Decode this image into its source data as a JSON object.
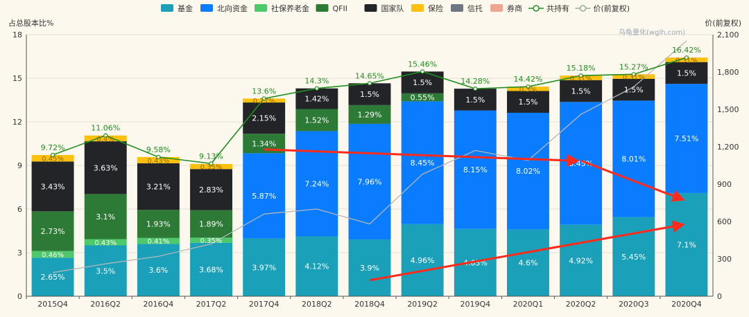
{
  "chart_data": {
    "type": "bar",
    "subtype": "stacked-bar-with-line",
    "title": "",
    "watermark": "乌龟量化(wglh.com)",
    "ylabel_left": "占总股本比%",
    "ylabel_right": "价(前复权)",
    "ylim_left": [
      0,
      18
    ],
    "yticks_left": [
      0,
      3,
      6,
      9,
      12,
      15,
      18
    ],
    "ylim_right": [
      0,
      2100
    ],
    "yticks_right": [
      0,
      300,
      600,
      900,
      1200,
      1500,
      1800,
      2100
    ],
    "grid": true,
    "legend_position": "top-center",
    "categories": [
      "2015Q4",
      "2016Q2",
      "2016Q4",
      "2017Q2",
      "2017Q4",
      "2018Q2",
      "2018Q4",
      "2019Q2",
      "2019Q4",
      "2020Q1",
      "2020Q2",
      "2020Q3",
      "2020Q4"
    ],
    "series": [
      {
        "name": "基金",
        "color": "#1aa0b8",
        "values": [
          2.65,
          3.5,
          3.6,
          3.68,
          3.97,
          4.12,
          3.9,
          4.96,
          4.63,
          4.6,
          4.92,
          5.45,
          7.1
        ],
        "labels": [
          "2.65%",
          "3.5%",
          "3.6%",
          "3.68%",
          "3.97%",
          "4.12%",
          "3.9%",
          "4.96%",
          "4.63%",
          "4.6%",
          "4.92%",
          "5.45%",
          "7.1%"
        ]
      },
      {
        "name": "社保养老金",
        "color": "#4dc86a",
        "values": [
          0.46,
          0.43,
          0.41,
          0.35,
          0,
          0,
          0,
          0,
          0,
          0,
          0,
          0,
          0
        ],
        "labels": [
          "0.46%",
          "0.43%",
          "0.41%",
          "0.35%",
          "",
          "",
          "",
          "",
          "",
          "",
          "",
          "",
          ""
        ]
      },
      {
        "name": "北向资金",
        "color": "#0a7cff",
        "values": [
          0,
          0,
          0,
          0,
          5.87,
          7.24,
          7.96,
          8.45,
          8.15,
          8.02,
          8.45,
          8.01,
          7.51
        ],
        "labels": [
          "",
          "",
          "",
          "",
          "5.87%",
          "7.24%",
          "7.96%",
          "8.45%",
          "8.15%",
          "8.02%",
          "8.45%",
          "8.01%",
          "7.51%"
        ]
      },
      {
        "name": "QFII",
        "color": "#2d7a36",
        "values": [
          2.73,
          3.1,
          1.93,
          1.89,
          1.34,
          1.52,
          1.29,
          0.55,
          0,
          0,
          0,
          0,
          0
        ],
        "labels": [
          "2.73%",
          "3.1%",
          "1.93%",
          "1.89%",
          "1.34%",
          "1.52%",
          "1.29%",
          "0.55%",
          "",
          "",
          "",
          "",
          ""
        ]
      },
      {
        "name": "国家队",
        "color": "#222428",
        "values": [
          3.43,
          3.63,
          3.21,
          2.83,
          2.15,
          1.42,
          1.5,
          1.5,
          1.5,
          1.5,
          1.5,
          1.5,
          1.5
        ],
        "labels": [
          "3.43%",
          "3.63%",
          "3.21%",
          "2.83%",
          "2.15%",
          "1.42%",
          "1.5%",
          "1.5%",
          "1.5%",
          "1.5%",
          "1.5%",
          "1.5%",
          "1.5%"
        ]
      },
      {
        "name": "保险",
        "color": "#fcc10e",
        "values": [
          0.45,
          0.4,
          0.43,
          0.35,
          0.27,
          0,
          0,
          0,
          0,
          0.3,
          0.31,
          0.31,
          0.31
        ],
        "labels": [
          "0.45%",
          "0.4%",
          "0.43%",
          "0.35%",
          "0.27%",
          "",
          "",
          "",
          "",
          "0.3%",
          "0.31%",
          "0.31%",
          "0.31%"
        ]
      }
    ],
    "total_line": {
      "name": "共持有",
      "color": "#1f8f1f",
      "values": [
        9.72,
        11.06,
        9.58,
        9.13,
        13.6,
        14.3,
        14.65,
        15.46,
        14.28,
        14.42,
        15.18,
        15.27,
        16.42
      ],
      "labels": [
        "9.72%",
        "11.06%",
        "9.58%",
        "9.13%",
        "13.6%",
        "14.3%",
        "14.65%",
        "15.46%",
        "14.28%",
        "14.42%",
        "15.18%",
        "15.27%",
        "16.42%"
      ]
    },
    "price_line": {
      "name": "价(前复权)",
      "color": "#b6b6b6",
      "values": [
        190,
        260,
        320,
        420,
        660,
        700,
        580,
        980,
        1170,
        1090,
        1460,
        1680,
        2050
      ]
    },
    "legend": [
      {
        "name": "基金",
        "color": "#1aa0b8",
        "kind": "rect"
      },
      {
        "name": "北向资金",
        "color": "#0a7cff",
        "kind": "rect"
      },
      {
        "name": "社保养老金",
        "color": "#4dc86a",
        "kind": "rect"
      },
      {
        "name": "QFII",
        "color": "#2d7a36",
        "kind": "rect"
      },
      {
        "name": "国家队",
        "color": "#222428",
        "kind": "rect"
      },
      {
        "name": "保险",
        "color": "#fcc10e",
        "kind": "rect"
      },
      {
        "name": "信托",
        "color": "#6e7683",
        "kind": "rect"
      },
      {
        "name": "券商",
        "color": "#f0a58f",
        "kind": "rect"
      },
      {
        "name": "共持有",
        "color": "#1f8f1f",
        "kind": "line"
      },
      {
        "name": "价(前复权)",
        "color": "#97a897",
        "kind": "line"
      }
    ],
    "annotations": [
      {
        "type": "arrow",
        "color": "#ff2a1a",
        "from": [
          "2017Q4",
          10.1
        ],
        "to": [
          "2020Q2",
          9.32
        ]
      },
      {
        "type": "arrow",
        "color": "#ff2a1a",
        "from": [
          "2020Q2",
          9.32
        ],
        "to": [
          "2020Q4",
          6.7
        ]
      },
      {
        "type": "arrow",
        "color": "#ff2a1a",
        "from": [
          "2018Q4",
          1.1
        ],
        "to": [
          "2020Q4",
          4.9
        ]
      }
    ]
  }
}
